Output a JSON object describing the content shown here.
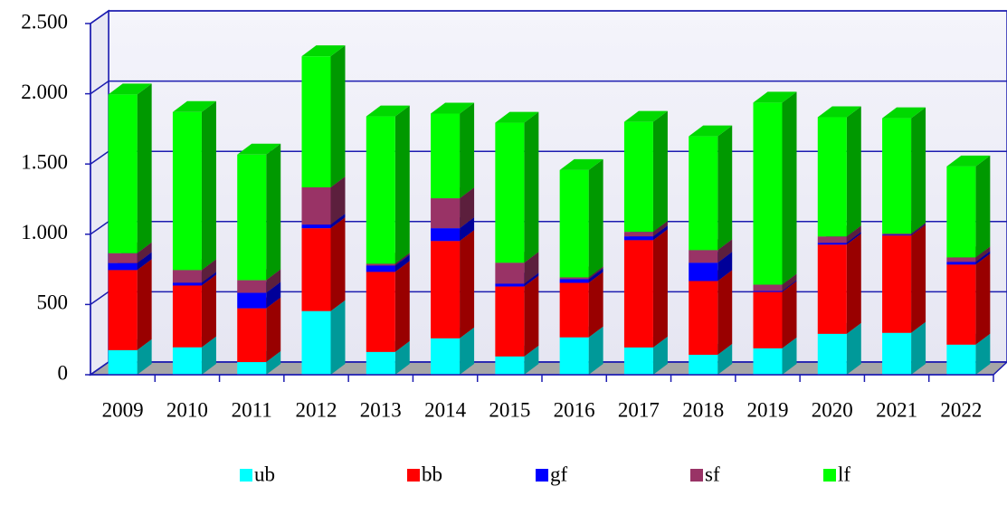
{
  "chart_data": {
    "type": "bar3d_stacked",
    "categories": [
      "2009",
      "2010",
      "2011",
      "2012",
      "2013",
      "2014",
      "2015",
      "2016",
      "2017",
      "2018",
      "2019",
      "2020",
      "2021",
      "2022"
    ],
    "series": [
      {
        "name": "ub",
        "color": "#00ffff",
        "values": [
          175,
          195,
          90,
          453,
          162,
          259,
          130,
          266,
          194,
          142,
          188,
          291,
          298,
          214
        ]
      },
      {
        "name": "bb",
        "color": "#ff0000",
        "values": [
          570,
          440,
          383,
          590,
          570,
          693,
          498,
          388,
          764,
          525,
          401,
          635,
          693,
          570
        ]
      },
      {
        "name": "gf",
        "color": "#0000ff",
        "values": [
          50,
          20,
          110,
          26,
          45,
          91,
          20,
          26,
          27,
          130,
          7,
          13,
          6,
          19
        ]
      },
      {
        "name": "sf",
        "color": "#993366",
        "values": [
          70,
          90,
          90,
          265,
          13,
          213,
          149,
          13,
          32,
          90,
          45,
          45,
          7,
          32
        ]
      },
      {
        "name": "lf",
        "color": "#00ff00",
        "values": [
          1130,
          1125,
          894,
          933,
          1049,
          603,
          997,
          764,
          783,
          810,
          1296,
          849,
          822,
          648
        ]
      }
    ],
    "ylim": [
      0,
      2500
    ],
    "yticks": [
      0,
      500,
      {
        "value": 1000,
        "label": "1.000"
      },
      {
        "value": 1500,
        "label": "1.500"
      },
      {
        "value": 2000,
        "label": "2.000"
      },
      {
        "value": 2500,
        "label": "2.500"
      }
    ],
    "grid": true,
    "legend": "bottom"
  }
}
